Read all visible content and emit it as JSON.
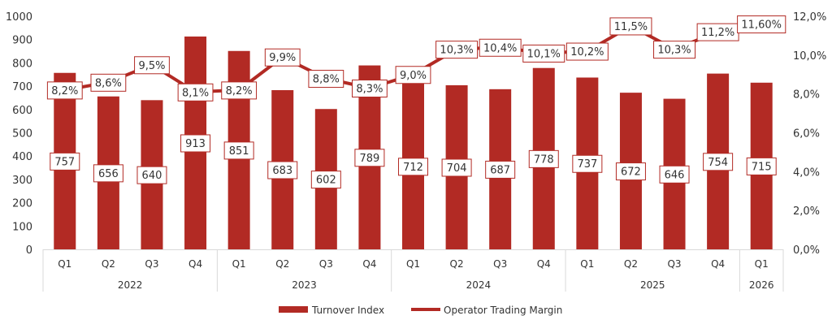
{
  "chart_data": {
    "type": "bar+line",
    "title": "",
    "categories": [
      "Q1",
      "Q2",
      "Q3",
      "Q4",
      "Q1",
      "Q2",
      "Q3",
      "Q4",
      "Q1",
      "Q2",
      "Q3",
      "Q4",
      "Q1",
      "Q2",
      "Q3",
      "Q4",
      "Q1"
    ],
    "groups": [
      {
        "label": "2022",
        "count": 4
      },
      {
        "label": "2023",
        "count": 4
      },
      {
        "label": "2024",
        "count": 4
      },
      {
        "label": "2025",
        "count": 4
      },
      {
        "label": "2026",
        "count": 1
      }
    ],
    "series": [
      {
        "name": "Turnover Index",
        "type": "bar",
        "axis": "left",
        "values": [
          757,
          656,
          640,
          913,
          851,
          683,
          602,
          789,
          712,
          704,
          687,
          778,
          737,
          672,
          646,
          754,
          715
        ],
        "labels": [
          "757",
          "656",
          "640",
          "913",
          "851",
          "683",
          "602",
          "789",
          "712",
          "704",
          "687",
          "778",
          "737",
          "672",
          "646",
          "754",
          "715"
        ]
      },
      {
        "name": "Operator Trading Margin",
        "type": "line",
        "axis": "right",
        "values": [
          8.2,
          8.6,
          9.5,
          8.1,
          8.2,
          9.9,
          8.8,
          8.3,
          9.0,
          10.3,
          10.4,
          10.1,
          10.2,
          11.5,
          10.3,
          11.2,
          11.6
        ],
        "labels": [
          "8,2%",
          "8,6%",
          "9,5%",
          "8,1%",
          "8,2%",
          "9,9%",
          "8,8%",
          "8,3%",
          "9,0%",
          "10,3%",
          "10,4%",
          "10,1%",
          "10,2%",
          "11,5%",
          "10,3%",
          "11,2%",
          "11,60%"
        ]
      }
    ],
    "y_left": {
      "range": [
        0,
        1000
      ],
      "ticks": [
        "0",
        "100",
        "200",
        "300",
        "400",
        "500",
        "600",
        "700",
        "800",
        "900",
        "1000"
      ]
    },
    "y_right": {
      "range": [
        0,
        12
      ],
      "ticks": [
        "0,0%",
        "2,0%",
        "4,0%",
        "6,0%",
        "8,0%",
        "10,0%",
        "12,0%"
      ]
    },
    "grid": false,
    "legend_position": "bottom",
    "colors": {
      "bar": "#B22A24",
      "line": "#B22A24",
      "label_border": "#B22A24"
    }
  }
}
